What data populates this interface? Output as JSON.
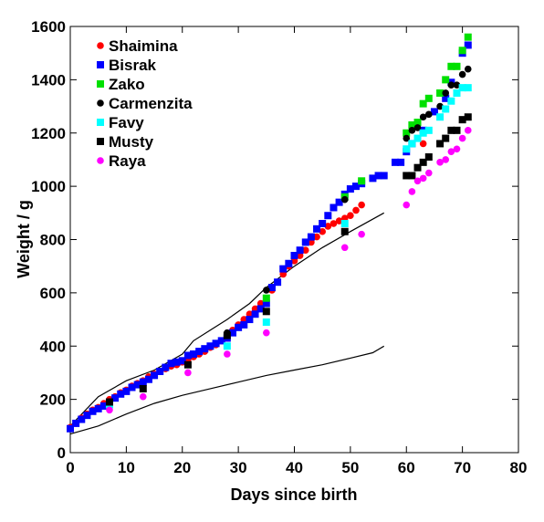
{
  "chart_data": {
    "type": "scatter",
    "xlabel": "Days since birth",
    "ylabel": "Weight / g",
    "xlim": [
      0,
      80
    ],
    "ylim": [
      0,
      1600
    ],
    "xticks": [
      0,
      10,
      20,
      30,
      40,
      50,
      60,
      70,
      80
    ],
    "yticks": [
      0,
      200,
      400,
      600,
      800,
      1000,
      1200,
      1400,
      1600
    ],
    "grid": false,
    "legend": "top-left",
    "series": [
      {
        "name": "Shaimina",
        "marker": "circle",
        "color": "#ff0000",
        "points": [
          [
            0,
            95
          ],
          [
            1,
            110
          ],
          [
            2,
            130
          ],
          [
            3,
            145
          ],
          [
            4,
            160
          ],
          [
            5,
            170
          ],
          [
            6,
            185
          ],
          [
            7,
            200
          ],
          [
            8,
            210
          ],
          [
            9,
            225
          ],
          [
            10,
            235
          ],
          [
            11,
            250
          ],
          [
            12,
            260
          ],
          [
            13,
            270
          ],
          [
            14,
            285
          ],
          [
            15,
            295
          ],
          [
            16,
            305
          ],
          [
            17,
            315
          ],
          [
            18,
            325
          ],
          [
            19,
            330
          ],
          [
            20,
            340
          ],
          [
            21,
            350
          ],
          [
            22,
            360
          ],
          [
            23,
            370
          ],
          [
            24,
            380
          ],
          [
            25,
            395
          ],
          [
            26,
            405
          ],
          [
            27,
            420
          ],
          [
            28,
            440
          ],
          [
            29,
            460
          ],
          [
            30,
            480
          ],
          [
            31,
            500
          ],
          [
            32,
            520
          ],
          [
            33,
            540
          ],
          [
            34,
            560
          ],
          [
            35,
            580
          ],
          [
            36,
            610
          ],
          [
            37,
            640
          ],
          [
            38,
            670
          ],
          [
            39,
            700
          ],
          [
            40,
            720
          ],
          [
            41,
            740
          ],
          [
            42,
            760
          ],
          [
            43,
            790
          ],
          [
            44,
            810
          ],
          [
            45,
            830
          ],
          [
            46,
            850
          ],
          [
            47,
            860
          ],
          [
            48,
            870
          ],
          [
            49,
            880
          ],
          [
            50,
            890
          ],
          [
            51,
            910
          ],
          [
            52,
            930
          ],
          [
            63,
            1160
          ],
          [
            68,
            1210
          ],
          [
            71,
            1260
          ]
        ]
      },
      {
        "name": "Bisrak",
        "marker": "square",
        "color": "#0000ff",
        "points": [
          [
            0,
            90
          ],
          [
            1,
            110
          ],
          [
            2,
            125
          ],
          [
            3,
            140
          ],
          [
            4,
            155
          ],
          [
            5,
            165
          ],
          [
            6,
            175
          ],
          [
            7,
            190
          ],
          [
            8,
            205
          ],
          [
            9,
            220
          ],
          [
            10,
            230
          ],
          [
            11,
            245
          ],
          [
            12,
            255
          ],
          [
            13,
            265
          ],
          [
            14,
            275
          ],
          [
            15,
            290
          ],
          [
            16,
            305
          ],
          [
            17,
            320
          ],
          [
            18,
            335
          ],
          [
            19,
            340
          ],
          [
            20,
            345
          ],
          [
            21,
            365
          ],
          [
            22,
            370
          ],
          [
            23,
            380
          ],
          [
            24,
            390
          ],
          [
            25,
            400
          ],
          [
            26,
            410
          ],
          [
            27,
            420
          ],
          [
            28,
            430
          ],
          [
            29,
            450
          ],
          [
            30,
            470
          ],
          [
            31,
            480
          ],
          [
            32,
            500
          ],
          [
            33,
            520
          ],
          [
            34,
            540
          ],
          [
            35,
            560
          ],
          [
            36,
            620
          ],
          [
            37,
            640
          ],
          [
            38,
            690
          ],
          [
            39,
            710
          ],
          [
            40,
            740
          ],
          [
            41,
            760
          ],
          [
            42,
            790
          ],
          [
            43,
            810
          ],
          [
            44,
            840
          ],
          [
            45,
            860
          ],
          [
            46,
            890
          ],
          [
            47,
            920
          ],
          [
            48,
            940
          ],
          [
            49,
            970
          ],
          [
            50,
            990
          ],
          [
            51,
            1000
          ],
          [
            52,
            1010
          ],
          [
            54,
            1030
          ],
          [
            55,
            1040
          ],
          [
            56,
            1040
          ],
          [
            58,
            1090
          ],
          [
            59,
            1090
          ],
          [
            60,
            1130
          ],
          [
            61,
            1160
          ],
          [
            63,
            1210
          ],
          [
            65,
            1280
          ],
          [
            67,
            1330
          ],
          [
            68,
            1390
          ],
          [
            70,
            1500
          ],
          [
            71,
            1530
          ]
        ]
      },
      {
        "name": "Zako",
        "marker": "square",
        "color": "#00e000",
        "points": [
          [
            35,
            580
          ],
          [
            49,
            960
          ],
          [
            52,
            1020
          ],
          [
            60,
            1200
          ],
          [
            61,
            1230
          ],
          [
            62,
            1240
          ],
          [
            63,
            1310
          ],
          [
            64,
            1330
          ],
          [
            66,
            1350
          ],
          [
            67,
            1400
          ],
          [
            68,
            1450
          ],
          [
            69,
            1450
          ],
          [
            70,
            1510
          ],
          [
            71,
            1560
          ]
        ]
      },
      {
        "name": "Carmenzita",
        "marker": "circle",
        "color": "#000000",
        "points": [
          [
            28,
            450
          ],
          [
            35,
            610
          ],
          [
            49,
            950
          ],
          [
            60,
            1180
          ],
          [
            61,
            1210
          ],
          [
            62,
            1220
          ],
          [
            63,
            1260
          ],
          [
            64,
            1270
          ],
          [
            66,
            1300
          ],
          [
            67,
            1350
          ],
          [
            68,
            1380
          ],
          [
            69,
            1380
          ],
          [
            70,
            1420
          ],
          [
            71,
            1440
          ]
        ]
      },
      {
        "name": "Favy",
        "marker": "square",
        "color": "#00ffff",
        "points": [
          [
            7,
            180
          ],
          [
            28,
            400
          ],
          [
            35,
            490
          ],
          [
            49,
            860
          ],
          [
            60,
            1140
          ],
          [
            61,
            1160
          ],
          [
            62,
            1180
          ],
          [
            63,
            1200
          ],
          [
            64,
            1210
          ],
          [
            66,
            1260
          ],
          [
            67,
            1290
          ],
          [
            68,
            1320
          ],
          [
            69,
            1350
          ],
          [
            70,
            1370
          ],
          [
            71,
            1370
          ]
        ]
      },
      {
        "name": "Musty",
        "marker": "square",
        "color": "#000000",
        "points": [
          [
            7,
            190
          ],
          [
            13,
            240
          ],
          [
            21,
            330
          ],
          [
            28,
            440
          ],
          [
            35,
            530
          ],
          [
            49,
            830
          ],
          [
            60,
            1040
          ],
          [
            61,
            1040
          ],
          [
            62,
            1070
          ],
          [
            63,
            1090
          ],
          [
            64,
            1110
          ],
          [
            66,
            1160
          ],
          [
            67,
            1180
          ],
          [
            68,
            1210
          ],
          [
            69,
            1210
          ],
          [
            70,
            1250
          ],
          [
            71,
            1260
          ]
        ]
      },
      {
        "name": "Raya",
        "marker": "circle",
        "color": "#ff00ff",
        "points": [
          [
            7,
            160
          ],
          [
            13,
            210
          ],
          [
            21,
            300
          ],
          [
            28,
            370
          ],
          [
            35,
            450
          ],
          [
            49,
            770
          ],
          [
            52,
            820
          ],
          [
            60,
            930
          ],
          [
            61,
            980
          ],
          [
            62,
            1020
          ],
          [
            63,
            1030
          ],
          [
            64,
            1050
          ],
          [
            66,
            1090
          ],
          [
            67,
            1100
          ],
          [
            68,
            1130
          ],
          [
            69,
            1140
          ],
          [
            70,
            1180
          ],
          [
            71,
            1210
          ]
        ]
      },
      {
        "name": "",
        "marker": "line",
        "color": "#000000",
        "points": [
          [
            0,
            100
          ],
          [
            5,
            210
          ],
          [
            10,
            270
          ],
          [
            15,
            310
          ],
          [
            20,
            370
          ],
          [
            22,
            420
          ],
          [
            25,
            460
          ],
          [
            28,
            500
          ],
          [
            32,
            560
          ],
          [
            35,
            620
          ],
          [
            40,
            700
          ],
          [
            45,
            770
          ],
          [
            50,
            830
          ],
          [
            56,
            900
          ]
        ]
      },
      {
        "name": "",
        "marker": "line",
        "color": "#000000",
        "points": [
          [
            0,
            70
          ],
          [
            5,
            100
          ],
          [
            10,
            145
          ],
          [
            15,
            185
          ],
          [
            20,
            215
          ],
          [
            25,
            240
          ],
          [
            30,
            265
          ],
          [
            35,
            290
          ],
          [
            40,
            310
          ],
          [
            45,
            330
          ],
          [
            50,
            355
          ],
          [
            54,
            375
          ],
          [
            56,
            400
          ]
        ]
      }
    ]
  }
}
